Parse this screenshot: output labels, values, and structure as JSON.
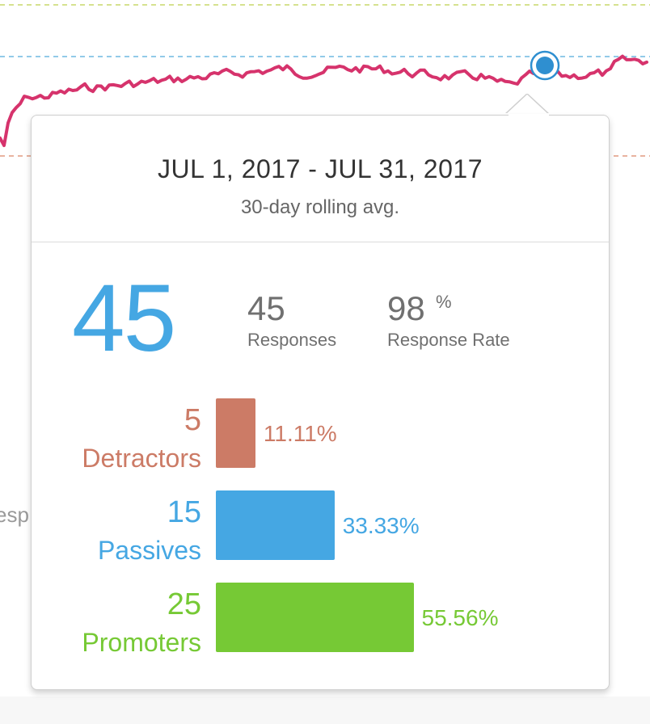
{
  "background": {
    "fragments": {
      "paren": ")",
      "esp": "esp",
      "close_paren": ")"
    },
    "line_color": "#d6336c",
    "highlight_point_color": "#2f8fd0"
  },
  "tooltip": {
    "date_range": "JUL 1, 2017 - JUL 31, 2017",
    "subtitle": "30-day rolling avg.",
    "score": "45",
    "responses": {
      "value": "45",
      "label": "Responses"
    },
    "response_rate": {
      "value": "98",
      "unit": "%",
      "label": "Response Rate"
    }
  },
  "chart_data": {
    "type": "bar",
    "orientation": "horizontal",
    "categories": [
      "Detractors",
      "Passives",
      "Promoters"
    ],
    "counts": [
      "5",
      "15",
      "25"
    ],
    "values": [
      11.11,
      33.33,
      55.56
    ],
    "value_labels": [
      "11.11%",
      "33.33%",
      "55.56%"
    ],
    "colors": [
      "#cc7b66",
      "#45a7e3",
      "#76c935"
    ],
    "xlim": [
      0,
      100
    ],
    "title": "",
    "xlabel": "",
    "ylabel": ""
  }
}
